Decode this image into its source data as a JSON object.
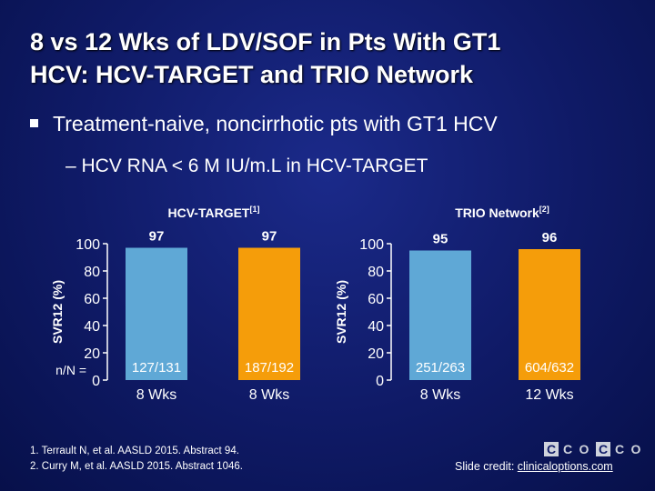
{
  "slide": {
    "title_line1": "8 vs 12 Wks of LDV/SOF in Pts With GT1",
    "title_line2": "HCV: HCV-TARGET and TRIO Network",
    "bullet": "Treatment-naive, noncirrhotic pts with GT1 HCV",
    "subbullet": "– HCV RNA < 6 M IU/m.L in HCV-TARGET",
    "references": [
      "1. Terrault N, et al. AASLD 2015. Abstract 94.",
      "2. Curry M, et al. AASLD 2015. Abstract 1046."
    ],
    "credit_prefix": "Slide credit: ",
    "credit_link": "clinicaloptions.com",
    "logo_letters": [
      "C",
      "C",
      "O"
    ]
  },
  "colors": {
    "blue_bar": "#5fa8d6",
    "orange_bar": "#f59d0a",
    "axis": "#ffffff"
  },
  "chart_data": [
    {
      "type": "bar",
      "title": "HCV-TARGET",
      "title_sup": "[1]",
      "ylabel": "SVR12 (%)",
      "ylim": [
        0,
        100
      ],
      "yticks": [
        0,
        20,
        40,
        60,
        80,
        100
      ],
      "categories": [
        "8 Wks",
        "8 Wks"
      ],
      "values": [
        97,
        97
      ],
      "value_labels": [
        "97",
        "97"
      ],
      "nn_prefix": "n/N =",
      "nn_labels": [
        "127/131",
        "187/192"
      ]
    },
    {
      "type": "bar",
      "title": "TRIO Network",
      "title_sup": "[2]",
      "ylabel": "SVR12 (%)",
      "ylim": [
        0,
        100
      ],
      "yticks": [
        0,
        20,
        40,
        60,
        80,
        100
      ],
      "categories": [
        "8 Wks",
        "12 Wks"
      ],
      "values": [
        95,
        96
      ],
      "value_labels": [
        "95",
        "96"
      ],
      "nn_prefix": "",
      "nn_labels": [
        "251/263",
        "604/632"
      ]
    }
  ]
}
